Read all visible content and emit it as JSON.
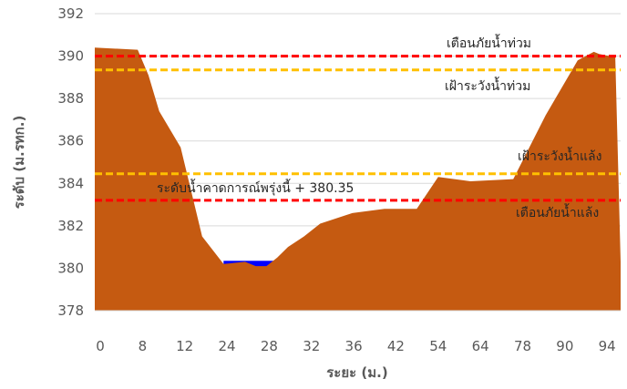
{
  "chart_data": {
    "type": "area",
    "title": "",
    "xlabel": "ระยะ (ม.)",
    "ylabel": "ระดับ (ม.รทก.)",
    "ylim": [
      378,
      392
    ],
    "y_ticks": [
      378,
      380,
      382,
      384,
      386,
      388,
      390,
      392
    ],
    "x_tick_labels": [
      "0",
      "8",
      "12",
      "24",
      "28",
      "32",
      "36",
      "42",
      "54",
      "64",
      "78",
      "90",
      "94"
    ],
    "grid": "horizontal",
    "colors": {
      "ground": "#c55a11",
      "water": "#0000ff",
      "flood_warning": "#ff0000",
      "flood_watch": "#ffc000",
      "grid": "#d9d9d9",
      "axis_text": "#595959"
    },
    "ground_profile": {
      "name": "",
      "points": [
        [
          0,
          390.4
        ],
        [
          8,
          390.3
        ],
        [
          10,
          389.1
        ],
        [
          12,
          387.4
        ],
        [
          16,
          385.7
        ],
        [
          20,
          381.5
        ],
        [
          24,
          380.2
        ],
        [
          28,
          380.3
        ],
        [
          30,
          380.1
        ],
        [
          32,
          380.1
        ],
        [
          34,
          380.5
        ],
        [
          36,
          381.0
        ],
        [
          39,
          381.5
        ],
        [
          42,
          382.1
        ],
        [
          48,
          382.6
        ],
        [
          54,
          382.8
        ],
        [
          60,
          382.8
        ],
        [
          64,
          384.3
        ],
        [
          70,
          384.1
        ],
        [
          78,
          384.2
        ],
        [
          84,
          387.2
        ],
        [
          90,
          389.8
        ],
        [
          93,
          390.2
        ],
        [
          94,
          390.1
        ],
        [
          96,
          390.0
        ],
        [
          97,
          390.0
        ],
        [
          98,
          380.3
        ]
      ]
    },
    "water_surface": {
      "level": 380.35,
      "x_range": [
        24,
        34
      ]
    },
    "reference_lines": [
      {
        "label": "เตือนภัยน้ำท่วม",
        "value": 390.0,
        "kind": "flood_warning"
      },
      {
        "label": "เฝ้าระวังน้ำท่วม",
        "value": 389.35,
        "kind": "flood_watch"
      },
      {
        "label": "เฝ้าระวังน้ำแล้ง",
        "value": 384.45,
        "kind": "flood_watch"
      },
      {
        "label": "เตือนภัยน้ำแล้ง",
        "value": 383.2,
        "kind": "flood_warning"
      }
    ],
    "forecast_label": "ระดับน้ำคาดการณ์พรุ่งนี้ + 380.35"
  }
}
